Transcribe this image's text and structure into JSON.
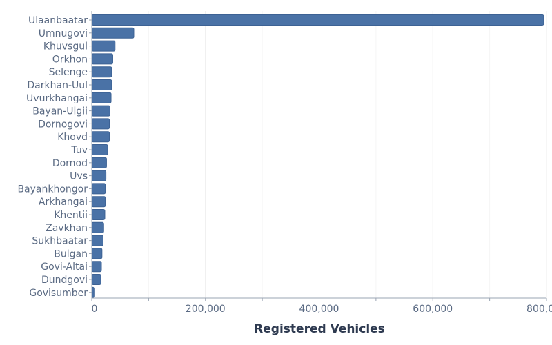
{
  "colors": {
    "bar": "#4a72a6",
    "bar_stroke": "#3d6294",
    "axis_text": "#5a6a83",
    "title_text": "#2e3a50"
  },
  "chart_data": {
    "type": "bar",
    "orientation": "horizontal",
    "categories": [
      "Ulaanbaatar",
      "Umnugovi",
      "Khuvsgul",
      "Orkhon",
      "Selenge",
      "Darkhan-Uul",
      "Uvurkhangai",
      "Bayan-Ulgii",
      "Dornogovi",
      "Khovd",
      "Tuv",
      "Dornod",
      "Uvs",
      "Bayankhongor",
      "Arkhangai",
      "Khentii",
      "Zavkhan",
      "Sukhbaatar",
      "Bulgan",
      "Govi-Altai",
      "Dundgovi",
      "Govisumber"
    ],
    "values": [
      795000,
      74000,
      41000,
      37000,
      35000,
      35000,
      34000,
      32000,
      31000,
      31000,
      28000,
      26000,
      25000,
      24000,
      24000,
      23000,
      21000,
      20000,
      18000,
      17000,
      16000,
      4000
    ],
    "xlabel": "Registered Vehicles",
    "ylabel": "",
    "xlim": [
      0,
      800000
    ],
    "x_ticks": [
      0,
      200000,
      400000,
      600000,
      800000
    ],
    "x_tick_labels": [
      "0",
      "200,000",
      "400,000",
      "600,000",
      "800,000"
    ],
    "grid": true,
    "legend": "none"
  }
}
